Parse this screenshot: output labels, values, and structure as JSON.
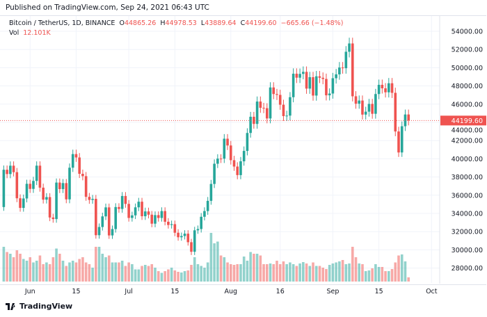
{
  "header": {
    "published": "Published on TradingView.com, Sep 24, 2021 06:43 UTC"
  },
  "legend": {
    "symbol": "Bitcoin / TetherUS, 1D, BINANCE",
    "o_label": "O",
    "o": "44865.26",
    "h_label": "H",
    "h": "44978.53",
    "l_label": "L",
    "l": "43889.64",
    "c_label": "C",
    "c": "44199.60",
    "change": "−665.66 (−1.48%)",
    "vol_label": "Vol",
    "vol": "12.101K"
  },
  "footer": {
    "brand": "TradingView",
    "logo_icon": "tradingview-logo-icon"
  },
  "colors": {
    "up": "#26a69a",
    "down": "#ef5350",
    "grid": "#f0f3fa"
  },
  "chart_data": {
    "type": "candlestick",
    "title": "",
    "x_start": "2021-05-24",
    "x_end": "2021-09-24",
    "x_tick_labels": [
      {
        "date": "2021-06-01",
        "label": "Jun"
      },
      {
        "date": "2021-06-15",
        "label": "15"
      },
      {
        "date": "2021-07-01",
        "label": "Jul"
      },
      {
        "date": "2021-07-15",
        "label": "15"
      },
      {
        "date": "2021-08-01",
        "label": "Aug"
      },
      {
        "date": "2021-08-16",
        "label": "16"
      },
      {
        "date": "2021-09-01",
        "label": "Sep"
      },
      {
        "date": "2021-09-15",
        "label": "15"
      },
      {
        "date": "2021-10-01",
        "label": "Oct"
      }
    ],
    "y_tick_labels": [
      "54000.00",
      "52000.00",
      "50000.00",
      "48000.00",
      "46000.00",
      "44000.00",
      "42000.00",
      "40000.00",
      "38000.00",
      "36000.00",
      "34000.00",
      "32000.00",
      "30000.00",
      "28000.00"
    ],
    "ylim": [
      26800,
      55500
    ],
    "last_price_label": "44199.60",
    "grid": true,
    "first_open": 34700,
    "close": [
      38796,
      38324,
      39241,
      38529,
      35663,
      34605,
      35641,
      37253,
      36693,
      37568,
      39246,
      36829,
      35513,
      35796,
      33552,
      33380,
      37388,
      36675,
      37331,
      35546,
      39020,
      40516,
      40144,
      38349,
      38092,
      35820,
      35483,
      35600,
      31608,
      32509,
      33675,
      34663,
      31584,
      32283,
      34700,
      34494,
      35911,
      35045,
      33504,
      33786,
      34669,
      35287,
      33690,
      34220,
      33862,
      32875,
      33815,
      33502,
      34259,
      33086,
      32730,
      32820,
      31880,
      31383,
      31520,
      31778,
      30839,
      29790,
      32144,
      32287,
      33634,
      34258,
      35381,
      37237,
      39457,
      40019,
      40016,
      42206,
      41461,
      39845,
      39147,
      38207,
      39723,
      40862,
      42836,
      44614,
      43829,
      46285,
      45595,
      45554,
      44428,
      47833,
      47109,
      47015,
      45936,
      44686,
      44741,
      46763,
      49339,
      48905,
      49321,
      49546,
      47707,
      48960,
      46942,
      49058,
      48897,
      48767,
      46970,
      47166,
      48847,
      49270,
      50025,
      49944,
      51753,
      52663,
      46863,
      46048,
      46395,
      44851,
      45173,
      46026,
      44941,
      47111,
      48122,
      47737,
      47299,
      48293,
      47242,
      42999,
      40694,
      43574,
      44865,
      44199.6
    ],
    "volume_k": [
      100,
      85,
      80,
      70,
      90,
      80,
      65,
      60,
      70,
      55,
      60,
      75,
      50,
      55,
      50,
      70,
      95,
      80,
      60,
      45,
      55,
      60,
      55,
      65,
      70,
      55,
      50,
      40,
      100,
      100,
      80,
      70,
      75,
      55,
      55,
      55,
      60,
      45,
      55,
      50,
      35,
      35,
      45,
      48,
      45,
      50,
      40,
      30,
      25,
      30,
      35,
      40,
      32,
      28,
      26,
      30,
      32,
      48,
      70,
      50,
      45,
      40,
      55,
      140,
      110,
      115,
      75,
      70,
      55,
      50,
      48,
      50,
      50,
      72,
      60,
      85,
      80,
      80,
      75,
      50,
      50,
      52,
      50,
      60,
      50,
      58,
      50,
      55,
      50,
      45,
      52,
      56,
      52,
      45,
      55,
      45,
      45,
      40,
      36,
      48,
      52,
      55,
      58,
      62,
      50,
      52,
      100,
      70,
      52,
      50,
      30,
      32,
      38,
      50,
      42,
      42,
      30,
      30,
      36,
      55,
      75,
      78,
      58,
      12.101
    ]
  }
}
